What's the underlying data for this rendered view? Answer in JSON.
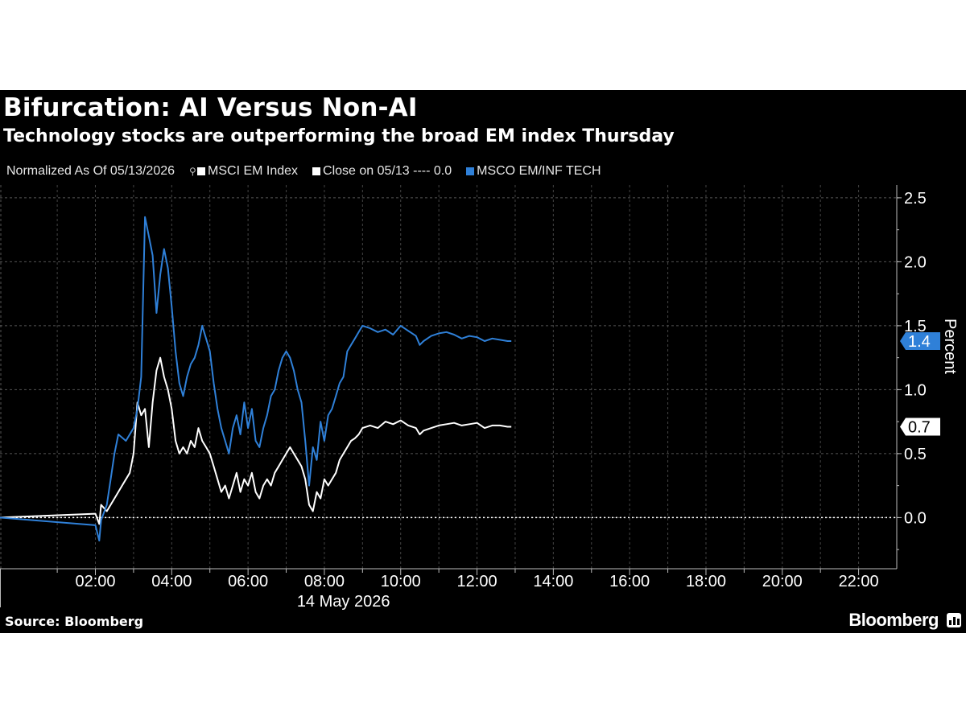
{
  "header": {
    "title": "Bifurcation: AI Versus Non-AI",
    "subtitle": "Technology stocks are outperforming the broad EM index Thursday"
  },
  "legend": {
    "normalized": "Normalized As Of 05/13/2026",
    "msci_em": "MSCI EM Index",
    "close_line": "Close on 05/13 ---- 0.0",
    "msco_tech": "MSCO EM/INF TECH"
  },
  "footer": {
    "source": "Source: Bloomberg",
    "brand": "Bloomberg"
  },
  "colors": {
    "background": "#000000",
    "msci_em": "#ffffff",
    "msco_tech": "#2f80d8",
    "grid": "#555555"
  },
  "chart_data": {
    "type": "line",
    "title": "Bifurcation: AI Versus Non-AI",
    "subtitle": "Technology stocks are outperforming the broad EM index Thursday",
    "xlabel": "14 May 2026",
    "ylabel": "Percent",
    "x_unit": "hours (local, 14 May 2026)",
    "xlim": [
      -0.5,
      23
    ],
    "ylim": [
      -0.4,
      2.6
    ],
    "x_ticks": [
      "02:00",
      "04:00",
      "06:00",
      "08:00",
      "10:00",
      "12:00",
      "14:00",
      "16:00",
      "18:00",
      "20:00",
      "22:00"
    ],
    "x_tick_values": [
      2,
      4,
      6,
      8,
      10,
      12,
      14,
      16,
      18,
      20,
      22
    ],
    "y_ticks": [
      0.0,
      0.5,
      1.0,
      1.5,
      2.0,
      2.5
    ],
    "y_tick_labels": [
      "0.0",
      "0.5",
      "1.0",
      "1.5",
      "2.0",
      "2.5"
    ],
    "y_axis_side": "right",
    "grid": true,
    "reference_line": {
      "y": 0.0,
      "label": "Close on 05/13"
    },
    "end_labels": [
      "1.4",
      "0.7"
    ],
    "series": [
      {
        "name": "MSCI EM Index",
        "color": "#ffffff",
        "points": [
          [
            -0.5,
            0.0
          ],
          [
            2.0,
            0.03
          ],
          [
            2.1,
            -0.05
          ],
          [
            2.15,
            0.1
          ],
          [
            2.3,
            0.05
          ],
          [
            2.5,
            0.15
          ],
          [
            2.7,
            0.25
          ],
          [
            2.9,
            0.35
          ],
          [
            3.0,
            0.5
          ],
          [
            3.1,
            0.9
          ],
          [
            3.2,
            0.8
          ],
          [
            3.3,
            0.85
          ],
          [
            3.4,
            0.55
          ],
          [
            3.5,
            0.9
          ],
          [
            3.6,
            1.15
          ],
          [
            3.7,
            1.25
          ],
          [
            3.8,
            1.1
          ],
          [
            3.9,
            1.0
          ],
          [
            4.0,
            0.85
          ],
          [
            4.1,
            0.6
          ],
          [
            4.2,
            0.5
          ],
          [
            4.3,
            0.55
          ],
          [
            4.4,
            0.5
          ],
          [
            4.5,
            0.6
          ],
          [
            4.6,
            0.55
          ],
          [
            4.7,
            0.7
          ],
          [
            4.8,
            0.6
          ],
          [
            4.9,
            0.55
          ],
          [
            5.0,
            0.5
          ],
          [
            5.1,
            0.4
          ],
          [
            5.2,
            0.3
          ],
          [
            5.3,
            0.2
          ],
          [
            5.4,
            0.25
          ],
          [
            5.5,
            0.15
          ],
          [
            5.6,
            0.25
          ],
          [
            5.7,
            0.35
          ],
          [
            5.8,
            0.2
          ],
          [
            5.9,
            0.3
          ],
          [
            6.0,
            0.25
          ],
          [
            6.1,
            0.35
          ],
          [
            6.2,
            0.2
          ],
          [
            6.3,
            0.15
          ],
          [
            6.4,
            0.25
          ],
          [
            6.5,
            0.3
          ],
          [
            6.6,
            0.25
          ],
          [
            6.7,
            0.35
          ],
          [
            6.8,
            0.4
          ],
          [
            6.9,
            0.45
          ],
          [
            7.0,
            0.5
          ],
          [
            7.1,
            0.55
          ],
          [
            7.2,
            0.5
          ],
          [
            7.3,
            0.45
          ],
          [
            7.4,
            0.4
          ],
          [
            7.5,
            0.3
          ],
          [
            7.6,
            0.1
          ],
          [
            7.7,
            0.05
          ],
          [
            7.8,
            0.2
          ],
          [
            7.9,
            0.15
          ],
          [
            8.0,
            0.3
          ],
          [
            8.1,
            0.25
          ],
          [
            8.2,
            0.3
          ],
          [
            8.3,
            0.35
          ],
          [
            8.4,
            0.45
          ],
          [
            8.5,
            0.5
          ],
          [
            8.6,
            0.55
          ],
          [
            8.7,
            0.6
          ],
          [
            8.8,
            0.62
          ],
          [
            8.9,
            0.65
          ],
          [
            9.0,
            0.7
          ],
          [
            9.2,
            0.72
          ],
          [
            9.4,
            0.7
          ],
          [
            9.6,
            0.75
          ],
          [
            9.8,
            0.73
          ],
          [
            10.0,
            0.76
          ],
          [
            10.2,
            0.72
          ],
          [
            10.4,
            0.7
          ],
          [
            10.5,
            0.65
          ],
          [
            10.6,
            0.68
          ],
          [
            10.8,
            0.7
          ],
          [
            11.0,
            0.72
          ],
          [
            11.2,
            0.73
          ],
          [
            11.4,
            0.74
          ],
          [
            11.6,
            0.72
          ],
          [
            11.8,
            0.73
          ],
          [
            12.0,
            0.74
          ],
          [
            12.2,
            0.7
          ],
          [
            12.4,
            0.72
          ],
          [
            12.6,
            0.72
          ],
          [
            12.8,
            0.71
          ],
          [
            12.9,
            0.71
          ]
        ]
      },
      {
        "name": "MSCO EM/INF TECH",
        "color": "#2f80d8",
        "points": [
          [
            -0.5,
            0.0
          ],
          [
            2.0,
            -0.06
          ],
          [
            2.1,
            -0.18
          ],
          [
            2.15,
            -0.02
          ],
          [
            2.3,
            0.1
          ],
          [
            2.4,
            0.3
          ],
          [
            2.5,
            0.5
          ],
          [
            2.6,
            0.65
          ],
          [
            2.8,
            0.6
          ],
          [
            3.0,
            0.7
          ],
          [
            3.1,
            0.85
          ],
          [
            3.2,
            1.1
          ],
          [
            3.3,
            2.35
          ],
          [
            3.4,
            2.2
          ],
          [
            3.5,
            2.05
          ],
          [
            3.6,
            1.6
          ],
          [
            3.7,
            1.9
          ],
          [
            3.8,
            2.1
          ],
          [
            3.9,
            1.95
          ],
          [
            4.0,
            1.65
          ],
          [
            4.1,
            1.3
          ],
          [
            4.2,
            1.05
          ],
          [
            4.3,
            0.95
          ],
          [
            4.4,
            1.1
          ],
          [
            4.5,
            1.2
          ],
          [
            4.6,
            1.25
          ],
          [
            4.7,
            1.35
          ],
          [
            4.8,
            1.5
          ],
          [
            4.9,
            1.4
          ],
          [
            5.0,
            1.3
          ],
          [
            5.1,
            1.05
          ],
          [
            5.2,
            0.85
          ],
          [
            5.3,
            0.7
          ],
          [
            5.4,
            0.6
          ],
          [
            5.5,
            0.5
          ],
          [
            5.6,
            0.7
          ],
          [
            5.7,
            0.8
          ],
          [
            5.8,
            0.65
          ],
          [
            5.9,
            0.9
          ],
          [
            6.0,
            0.7
          ],
          [
            6.1,
            0.85
          ],
          [
            6.2,
            0.6
          ],
          [
            6.3,
            0.55
          ],
          [
            6.4,
            0.7
          ],
          [
            6.5,
            0.8
          ],
          [
            6.6,
            0.95
          ],
          [
            6.7,
            1.0
          ],
          [
            6.8,
            1.15
          ],
          [
            6.9,
            1.25
          ],
          [
            7.0,
            1.3
          ],
          [
            7.1,
            1.25
          ],
          [
            7.2,
            1.15
          ],
          [
            7.3,
            1.0
          ],
          [
            7.4,
            0.9
          ],
          [
            7.5,
            0.6
          ],
          [
            7.6,
            0.25
          ],
          [
            7.7,
            0.55
          ],
          [
            7.8,
            0.45
          ],
          [
            7.9,
            0.75
          ],
          [
            8.0,
            0.6
          ],
          [
            8.1,
            0.8
          ],
          [
            8.2,
            0.85
          ],
          [
            8.3,
            0.95
          ],
          [
            8.4,
            1.05
          ],
          [
            8.5,
            1.1
          ],
          [
            8.6,
            1.3
          ],
          [
            8.7,
            1.35
          ],
          [
            8.8,
            1.4
          ],
          [
            8.9,
            1.45
          ],
          [
            9.0,
            1.5
          ],
          [
            9.2,
            1.48
          ],
          [
            9.4,
            1.45
          ],
          [
            9.6,
            1.47
          ],
          [
            9.8,
            1.43
          ],
          [
            10.0,
            1.5
          ],
          [
            10.2,
            1.46
          ],
          [
            10.4,
            1.42
          ],
          [
            10.5,
            1.35
          ],
          [
            10.6,
            1.38
          ],
          [
            10.8,
            1.42
          ],
          [
            11.0,
            1.44
          ],
          [
            11.2,
            1.45
          ],
          [
            11.4,
            1.43
          ],
          [
            11.6,
            1.4
          ],
          [
            11.8,
            1.42
          ],
          [
            12.0,
            1.41
          ],
          [
            12.2,
            1.38
          ],
          [
            12.4,
            1.4
          ],
          [
            12.6,
            1.39
          ],
          [
            12.8,
            1.38
          ],
          [
            12.9,
            1.38
          ]
        ]
      }
    ]
  }
}
